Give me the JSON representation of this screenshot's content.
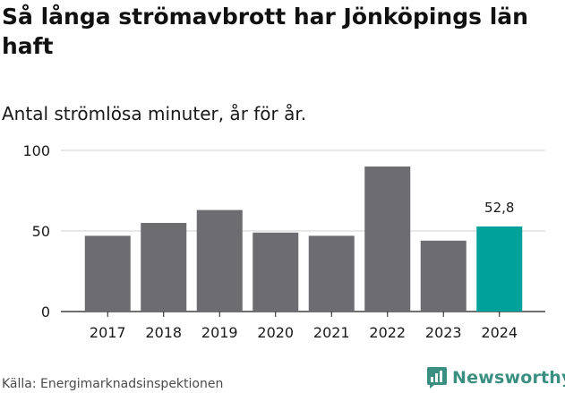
{
  "title": "Så långa strömavbrott har Jönköpings län haft",
  "subtitle": "Antal strömlösa minuter, år för år.",
  "source": "Källa: Energimarknadsinspektionen",
  "brand": {
    "name": "Newsworthy",
    "icon": "newsworthy-logo-icon",
    "color": "#3a8f80"
  },
  "colors": {
    "bar": "#6d6c70",
    "highlight": "#00a19a",
    "grid": "#d0d0d0",
    "axis": "#1a1a1a"
  },
  "chart_data": {
    "type": "bar",
    "title": "Så långa strömavbrott har Jönköpings län haft",
    "subtitle": "Antal strömlösa minuter, år för år.",
    "xlabel": "",
    "ylabel": "",
    "categories": [
      "2017",
      "2018",
      "2019",
      "2020",
      "2021",
      "2022",
      "2023",
      "2024"
    ],
    "values": [
      47,
      55,
      63,
      49,
      47,
      90,
      44,
      52.8
    ],
    "highlight_index": 7,
    "data_labels": [
      {
        "index": 7,
        "text": "52,8"
      }
    ],
    "yticks": [
      0,
      50,
      100
    ],
    "ytick_labels": [
      "0",
      "50",
      "100"
    ],
    "ylim": [
      0,
      100
    ],
    "grid": true
  }
}
